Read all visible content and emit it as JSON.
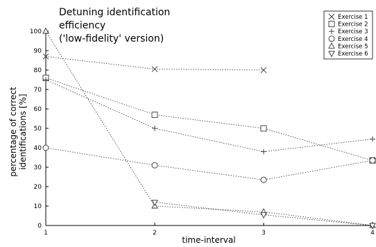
{
  "chart_data": {
    "type": "line",
    "title_lines": [
      "Detuning identification",
      "efficiency",
      "('low-fidelity' version)"
    ],
    "xlabel": "time-interval",
    "ylabel_lines": [
      "percentage of correct",
      "identifications [%]"
    ],
    "x": [
      1,
      2,
      3,
      4
    ],
    "xlim": [
      1,
      4
    ],
    "ylim": [
      0,
      100
    ],
    "x_ticks": [
      1,
      2,
      3,
      4
    ],
    "y_ticks": [
      0,
      10,
      20,
      30,
      40,
      50,
      60,
      70,
      80,
      90,
      100
    ],
    "grid": false,
    "legend_position": "top-right",
    "line_style": "dotted",
    "series": [
      {
        "name": "Exercise 1",
        "marker": "x-cross",
        "values": [
          87,
          80.5,
          80,
          null
        ]
      },
      {
        "name": "Exercise 2",
        "marker": "square",
        "values": [
          76,
          57,
          50,
          33.5
        ]
      },
      {
        "name": "Exercise 3",
        "marker": "plus",
        "values": [
          75,
          50,
          38,
          44.5
        ]
      },
      {
        "name": "Exercise 4",
        "marker": "circle",
        "values": [
          40,
          31,
          23.5,
          33.5
        ]
      },
      {
        "name": "Exercise 5",
        "marker": "triangle-up",
        "values": [
          100,
          10,
          7,
          0
        ]
      },
      {
        "name": "Exercise 6",
        "marker": "triangle-down",
        "values": [
          null,
          12,
          5.5,
          0
        ]
      }
    ]
  }
}
